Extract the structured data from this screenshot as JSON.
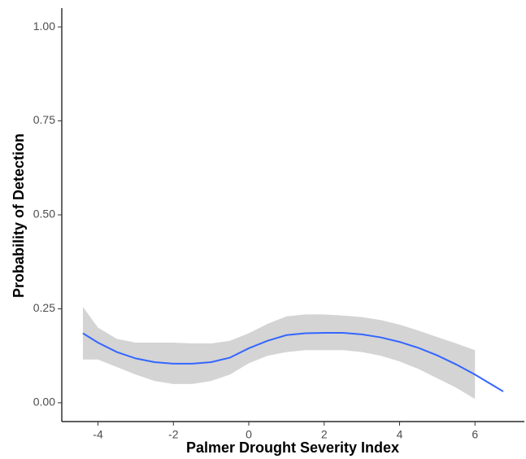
{
  "chart_data": {
    "type": "line",
    "x_label": "Palmer Drought Severity Index",
    "y_label": "Probability of Detection",
    "x": [
      -4.4,
      -4,
      -3.5,
      -3,
      -2.5,
      -2,
      -1.5,
      -1,
      -0.5,
      0,
      0.5,
      1,
      1.5,
      2,
      2.5,
      3,
      3.5,
      4,
      4.5,
      5,
      5.5,
      6,
      6.5,
      6.75
    ],
    "line": {
      "color": "#3366ff",
      "values": [
        0.185,
        0.16,
        0.135,
        0.118,
        0.108,
        0.104,
        0.104,
        0.108,
        0.12,
        0.145,
        0.165,
        0.18,
        0.185,
        0.186,
        0.186,
        0.182,
        0.174,
        0.162,
        0.146,
        0.126,
        0.102,
        0.075,
        0.045,
        0.03
      ]
    },
    "ribbon": {
      "color": "#d4d4d4",
      "upper": [
        0.255,
        0.2,
        0.17,
        0.16,
        0.16,
        0.16,
        0.158,
        0.158,
        0.165,
        0.185,
        0.21,
        0.23,
        0.235,
        0.235,
        0.232,
        0.228,
        0.22,
        0.208,
        0.192,
        0.175,
        0.158,
        0.14,
        null,
        null
      ],
      "lower": [
        0.115,
        0.115,
        0.095,
        0.075,
        0.058,
        0.05,
        0.05,
        0.058,
        0.075,
        0.105,
        0.125,
        0.135,
        0.14,
        0.14,
        0.14,
        0.135,
        0.125,
        0.11,
        0.09,
        0.065,
        0.04,
        0.01,
        null,
        null
      ]
    },
    "xlim": [
      -4.96,
      7.31
    ],
    "xticks": [
      -4,
      -2,
      0,
      2,
      4,
      6
    ],
    "ylim": [
      -0.05,
      1.05
    ],
    "yticks": [
      {
        "value": 0,
        "label": "0.00"
      },
      {
        "value": 0.25,
        "label": "0.25"
      },
      {
        "value": 0.5,
        "label": "0.50"
      },
      {
        "value": 0.75,
        "label": "0.75"
      },
      {
        "value": 1,
        "label": "1.00"
      }
    ],
    "grid": false
  }
}
